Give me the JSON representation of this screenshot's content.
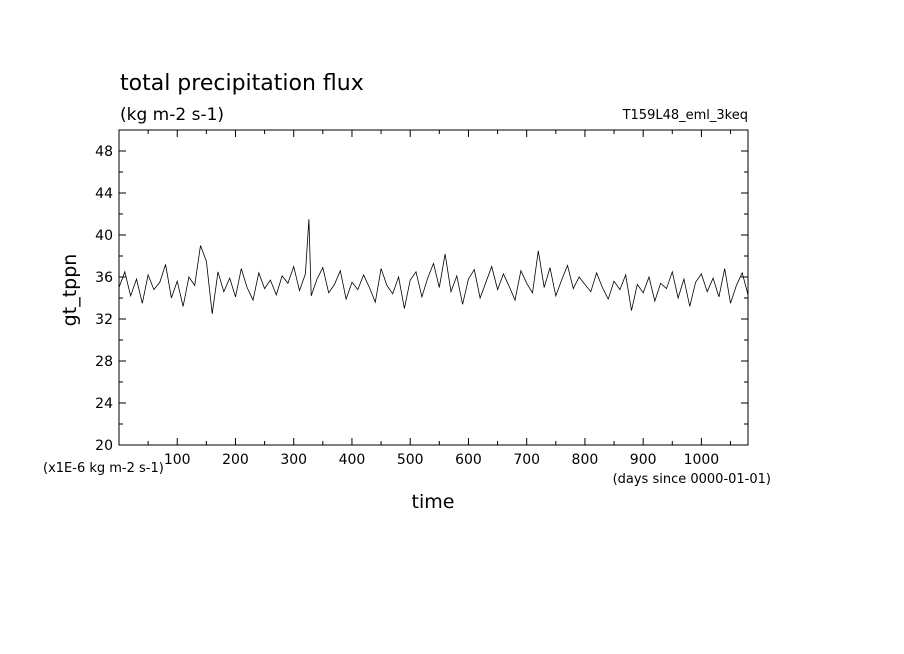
{
  "chart_data": {
    "type": "line",
    "title": "total precipitation flux",
    "subtitle": "(kg m-2 s-1)",
    "run_label": "T159L48_eml_3keq",
    "xlabel": "time",
    "x_units": "(days since 0000-01-01)",
    "ylabel": "gt_tppn",
    "y_units": "(x1E-6 kg m-2 s-1)",
    "xlim": [
      0,
      1080
    ],
    "ylim": [
      20,
      50
    ],
    "x_ticks": [
      100,
      200,
      300,
      400,
      500,
      600,
      700,
      800,
      900,
      1000
    ],
    "y_ticks": [
      20,
      24,
      28,
      32,
      36,
      40,
      44,
      48
    ],
    "grid": false,
    "series": [
      {
        "color": "#000000",
        "x": [
          0,
          10,
          20,
          30,
          40,
          50,
          60,
          70,
          80,
          90,
          100,
          110,
          120,
          130,
          140,
          150,
          160,
          170,
          180,
          190,
          200,
          210,
          220,
          230,
          240,
          250,
          260,
          270,
          280,
          290,
          300,
          310,
          320,
          326,
          330,
          340,
          350,
          360,
          370,
          380,
          390,
          400,
          410,
          420,
          430,
          440,
          450,
          460,
          470,
          480,
          490,
          500,
          510,
          520,
          530,
          540,
          550,
          560,
          570,
          580,
          590,
          600,
          610,
          620,
          630,
          640,
          650,
          660,
          670,
          680,
          690,
          700,
          710,
          720,
          730,
          740,
          750,
          760,
          770,
          780,
          790,
          800,
          810,
          820,
          830,
          840,
          850,
          860,
          870,
          880,
          890,
          900,
          910,
          920,
          930,
          940,
          950,
          960,
          970,
          980,
          990,
          1000,
          1010,
          1020,
          1030,
          1040,
          1050,
          1060,
          1070,
          1080
        ],
        "values": [
          35.0,
          36.5,
          34.2,
          35.8,
          33.5,
          36.2,
          34.8,
          35.5,
          37.2,
          34.0,
          35.6,
          33.2,
          36.0,
          35.2,
          39.0,
          37.5,
          32.5,
          36.5,
          34.6,
          35.9,
          34.1,
          36.8,
          35.0,
          33.8,
          36.4,
          34.9,
          35.7,
          34.3,
          36.1,
          35.4,
          37.0,
          34.7,
          36.3,
          41.5,
          34.2,
          35.8,
          36.9,
          34.5,
          35.3,
          36.6,
          33.9,
          35.5,
          34.8,
          36.2,
          35.0,
          33.6,
          36.8,
          35.2,
          34.4,
          36.0,
          33.0,
          35.7,
          36.5,
          34.1,
          35.9,
          37.3,
          35.0,
          38.2,
          34.6,
          36.1,
          33.4,
          35.8,
          36.7,
          34.0,
          35.5,
          37.0,
          34.8,
          36.3,
          35.1,
          33.8,
          36.6,
          35.4,
          34.5,
          38.5,
          35.0,
          36.9,
          34.2,
          35.7,
          37.1,
          34.9,
          36.0,
          35.3,
          34.6,
          36.4,
          35.0,
          33.9,
          35.6,
          34.8,
          36.2,
          32.8,
          35.3,
          34.5,
          36.0,
          33.7,
          35.4,
          34.9,
          36.5,
          34.0,
          35.8,
          33.2,
          35.5,
          36.3,
          34.6,
          35.9,
          34.1,
          36.8,
          33.5,
          35.2,
          36.4,
          34.3
        ]
      }
    ]
  }
}
